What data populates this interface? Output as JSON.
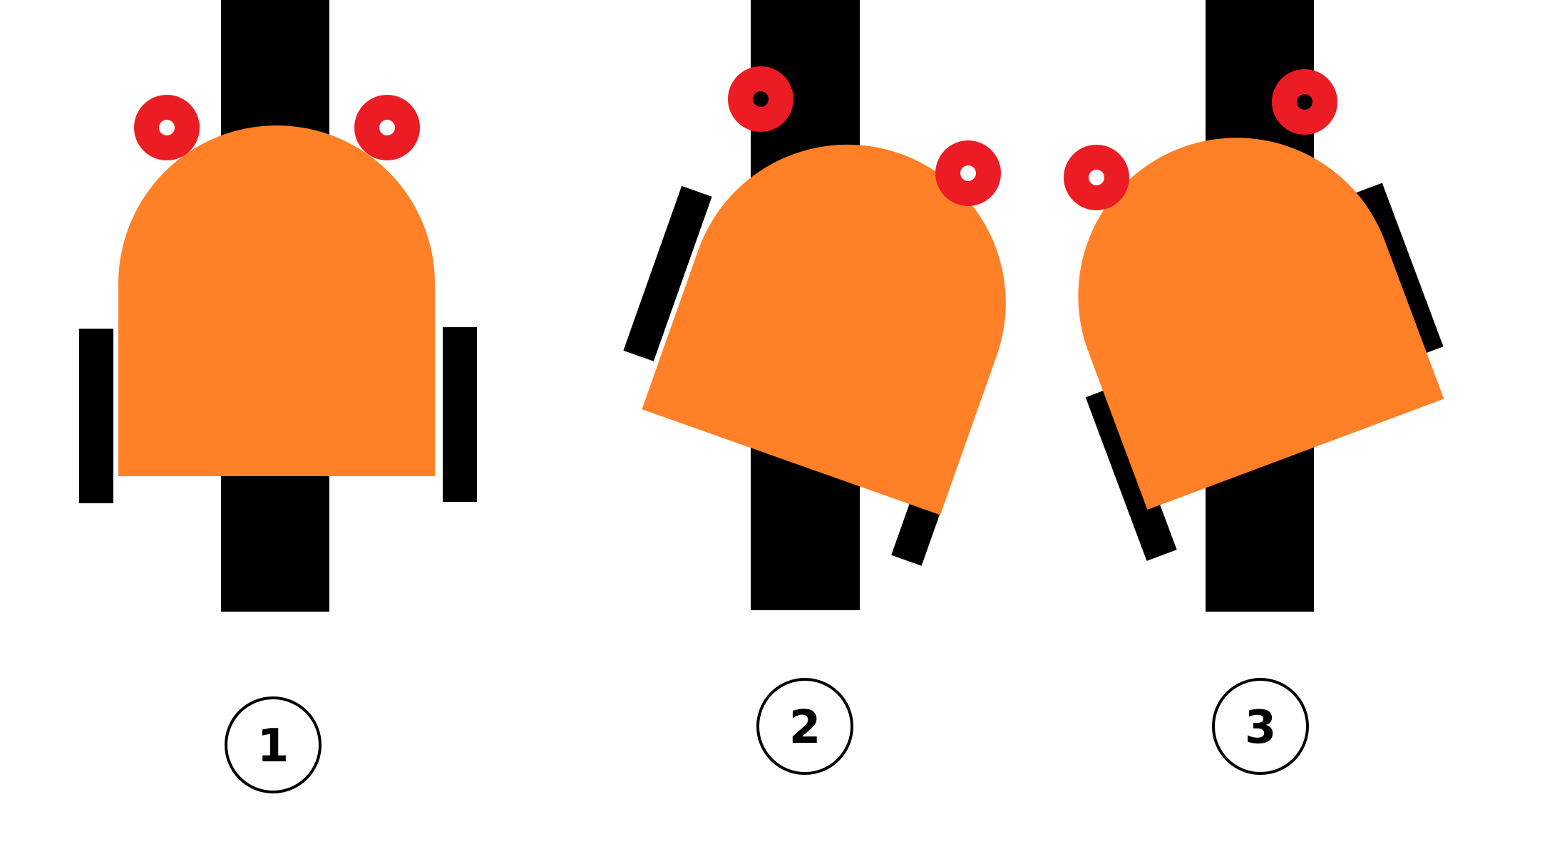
{
  "colors": {
    "background": "#ffffff",
    "line": "#000000",
    "robot_body": "#FF8026",
    "sensor_ring": "#EC1C24",
    "sensor_on_line": "#000000",
    "sensor_off_line": "#ffffff",
    "wheel": "#000000",
    "label_circle_stroke": "#000000"
  },
  "panels": [
    {
      "label": "1",
      "sensors": [
        {
          "side": "left",
          "on_line": false
        },
        {
          "side": "right",
          "on_line": false
        }
      ]
    },
    {
      "label": "2",
      "sensors": [
        {
          "side": "left",
          "on_line": true
        },
        {
          "side": "right",
          "on_line": false
        }
      ]
    },
    {
      "label": "3",
      "sensors": [
        {
          "side": "left",
          "on_line": false
        },
        {
          "side": "right",
          "on_line": true
        }
      ]
    }
  ]
}
